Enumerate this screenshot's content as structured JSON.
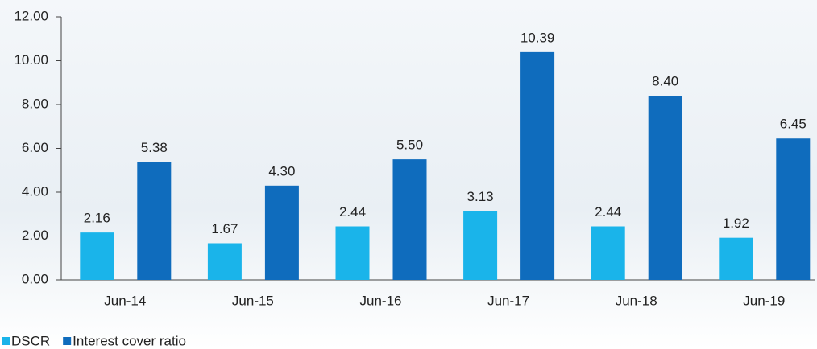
{
  "chart_data": {
    "type": "bar",
    "categories": [
      "Jun-14",
      "Jun-15",
      "Jun-16",
      "Jun-17",
      "Jun-18",
      "Jun-19"
    ],
    "series": [
      {
        "name": "DSCR",
        "color": "#1ab4ea",
        "values": [
          2.16,
          1.67,
          2.44,
          3.13,
          2.44,
          1.92
        ],
        "value_labels": [
          "2.16",
          "1.67",
          "2.44",
          "3.13",
          "2.44",
          "1.92"
        ]
      },
      {
        "name": "Interest cover ratio",
        "color": "#0f6cbd",
        "values": [
          5.38,
          4.3,
          5.5,
          10.39,
          8.4,
          6.45
        ],
        "value_labels": [
          "5.38",
          "4.30",
          "5.50",
          "10.39",
          "8.40",
          "6.45"
        ]
      }
    ],
    "ylim": [
      0,
      12
    ],
    "yticks": [
      {
        "value": 0,
        "label": "0.00"
      },
      {
        "value": 2,
        "label": "2.00"
      },
      {
        "value": 4,
        "label": "4.00"
      },
      {
        "value": 6,
        "label": "6.00"
      },
      {
        "value": 8,
        "label": "8.00"
      },
      {
        "value": 10,
        "label": "10.00"
      },
      {
        "value": 12,
        "label": "12.00"
      }
    ],
    "grid": false,
    "legend": "bottom-left"
  }
}
